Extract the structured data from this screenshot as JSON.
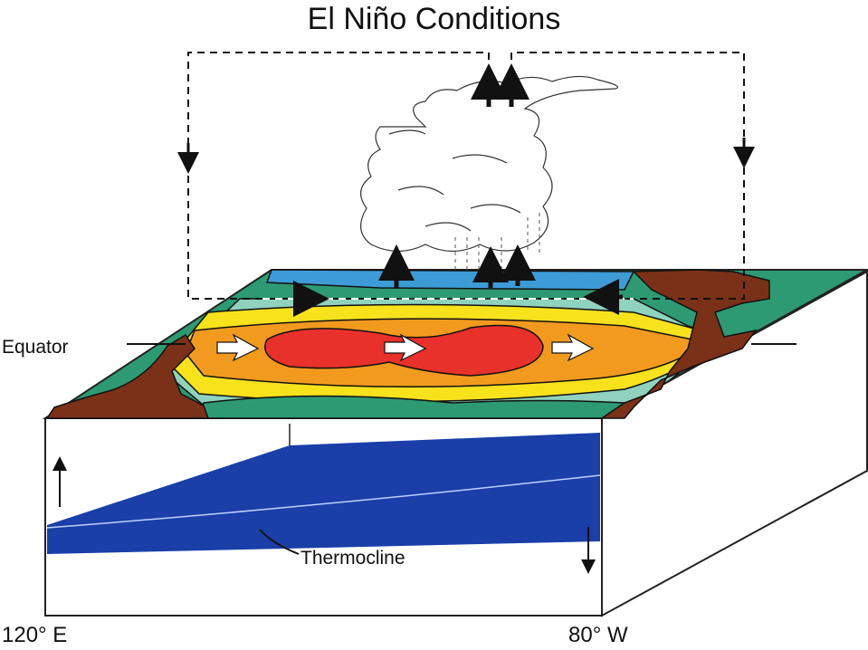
{
  "diagram": {
    "title": "El Niño Conditions",
    "labels": {
      "equator": "Equator",
      "thermocline": "Thermocline",
      "west_longitude": "120° E",
      "east_longitude": "80° W"
    },
    "colors": {
      "land": "#7a3118",
      "ocean_deep_blue": "#1a3fa8",
      "surface_blue": "#3d9cd8",
      "surface_green": "#2e9a73",
      "surface_teal": "#8fd2be",
      "surface_yellow": "#f7e21c",
      "surface_orange": "#f29a1e",
      "surface_red": "#e8312a",
      "outline": "#111111"
    },
    "icons": [
      "arrow-up-icon",
      "arrow-down-icon",
      "arrow-right-icon",
      "arrow-left-icon",
      "cloud-icon",
      "wind-arrow-icon"
    ]
  }
}
